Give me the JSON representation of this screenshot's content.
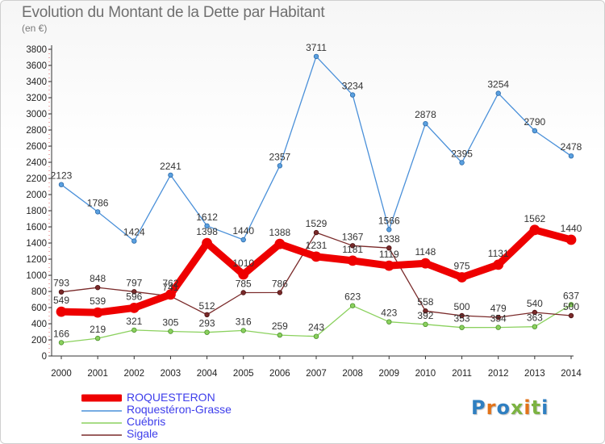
{
  "title": "Evolution du Montant de la Dette par Habitant",
  "subtitle": "(en €)",
  "logo": {
    "text": "Proxiti",
    "colors": [
      "#2f7fc1",
      "#e2731a",
      "#2f7fc1",
      "#7cb342",
      "#e2731a",
      "#7cb342",
      "#2f7fc1"
    ]
  },
  "chart_data": {
    "type": "line",
    "title": "Evolution du Montant de la Dette par Habitant",
    "subtitle": "(en €)",
    "x": [
      "2000",
      "2001",
      "2002",
      "2003",
      "2004",
      "2005",
      "2006",
      "2007",
      "2008",
      "2009",
      "2010",
      "2011",
      "2012",
      "2013",
      "2014"
    ],
    "ylim": [
      0,
      3800
    ],
    "yticks": [
      0,
      200,
      400,
      600,
      800,
      1000,
      1200,
      1400,
      1600,
      1800,
      2000,
      2200,
      2400,
      2600,
      2800,
      3000,
      3200,
      3400,
      3600,
      3800
    ],
    "grid": false,
    "legend_position": "bottom-left",
    "series": [
      {
        "name": "ROQUESTERON",
        "color": "#ee0000",
        "values": [
          549,
          539,
          596,
          762,
          1398,
          1010,
          1388,
          1231,
          1181,
          1119,
          1148,
          975,
          1131,
          1562,
          1440
        ]
      },
      {
        "name": "Roquestéron-Grasse",
        "color": "#4a90d9",
        "values": [
          2123,
          1786,
          1424,
          2241,
          1612,
          1440,
          2357,
          3711,
          3234,
          1566,
          2878,
          2395,
          3254,
          2790,
          2478
        ]
      },
      {
        "name": "Cuébris",
        "color": "#8bd15e",
        "values": [
          166,
          219,
          321,
          305,
          293,
          316,
          259,
          243,
          623,
          423,
          392,
          353,
          354,
          363,
          637
        ]
      },
      {
        "name": "Sigale",
        "color": "#7a2a2a",
        "values": [
          793,
          848,
          797,
          741,
          512,
          785,
          786,
          1529,
          1367,
          1338,
          558,
          500,
          479,
          540,
          500
        ]
      }
    ]
  }
}
